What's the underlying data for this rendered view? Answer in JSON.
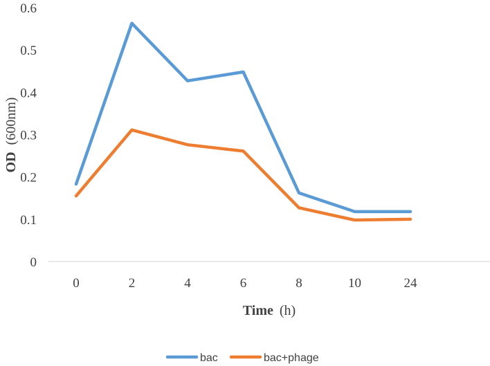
{
  "chart_data": {
    "type": "line",
    "categories": [
      "0",
      "2",
      "4",
      "6",
      "8",
      "10",
      "24"
    ],
    "series": [
      {
        "name": "bac",
        "color": "#5B9BD5",
        "values": [
          0.183,
          0.563,
          0.427,
          0.448,
          0.162,
          0.118,
          0.118
        ]
      },
      {
        "name": "bac+phage",
        "color": "#ED7D31",
        "values": [
          0.155,
          0.311,
          0.276,
          0.261,
          0.127,
          0.098,
          0.1
        ]
      }
    ],
    "ylim": [
      0,
      0.6
    ],
    "yticks": [
      "0",
      "0.1",
      "0.2",
      "0.3",
      "0.4",
      "0.5",
      "0.6"
    ],
    "ylabel": {
      "bold": "OD",
      "rest": "(600nm)"
    },
    "xlabel": {
      "bold": "Time",
      "rest": "(h)"
    },
    "grid": false,
    "legend_position": "bottom"
  }
}
